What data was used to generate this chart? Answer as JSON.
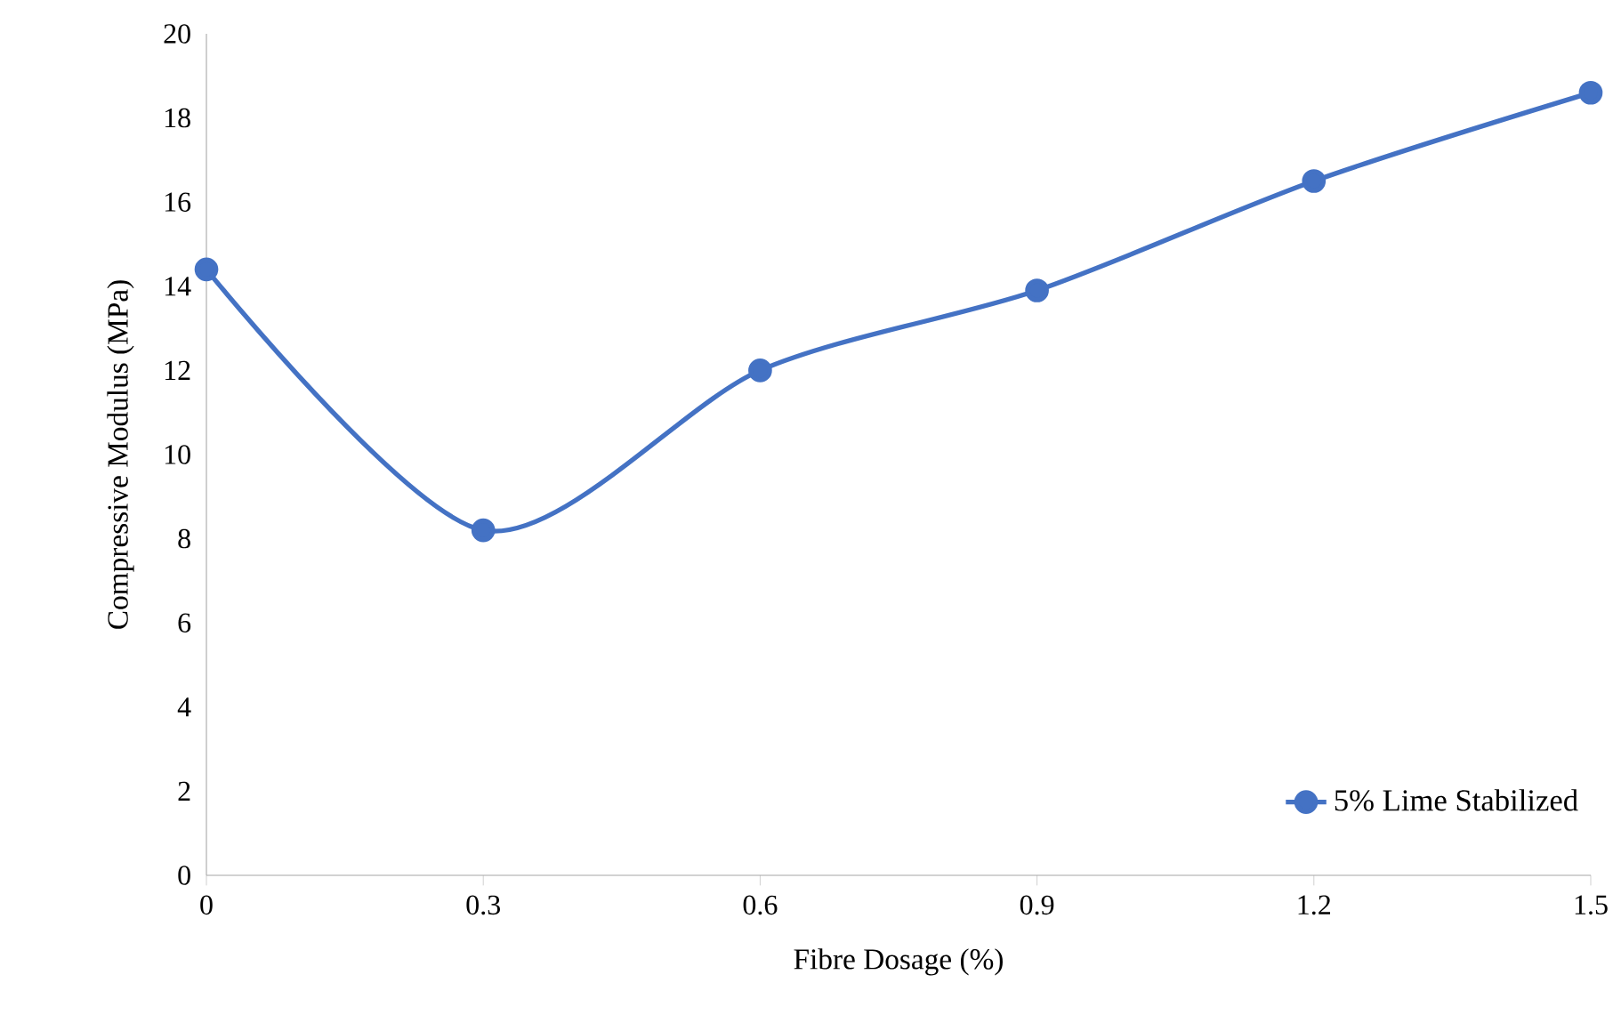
{
  "chart_data": {
    "type": "line",
    "xlabel": "Fibre Dosage (%)",
    "ylabel": "Compressive Modulus (MPa)",
    "x": [
      0,
      0.3,
      0.6,
      0.9,
      1.2,
      1.5
    ],
    "series": [
      {
        "name": "5% Lime Stabilized",
        "color": "#4472c4",
        "values": [
          14.4,
          8.2,
          12.0,
          13.9,
          16.5,
          18.6
        ]
      }
    ],
    "xlim": [
      0,
      1.5
    ],
    "xticks": [
      0,
      0.3,
      0.6,
      0.9,
      1.2,
      1.5
    ],
    "ylim": [
      0,
      20
    ],
    "yticks": [
      0,
      2,
      4,
      6,
      8,
      10,
      12,
      14,
      16,
      18,
      20
    ],
    "grid": false,
    "legend": "bottom right",
    "marker": "circle",
    "line_style": "solid"
  }
}
